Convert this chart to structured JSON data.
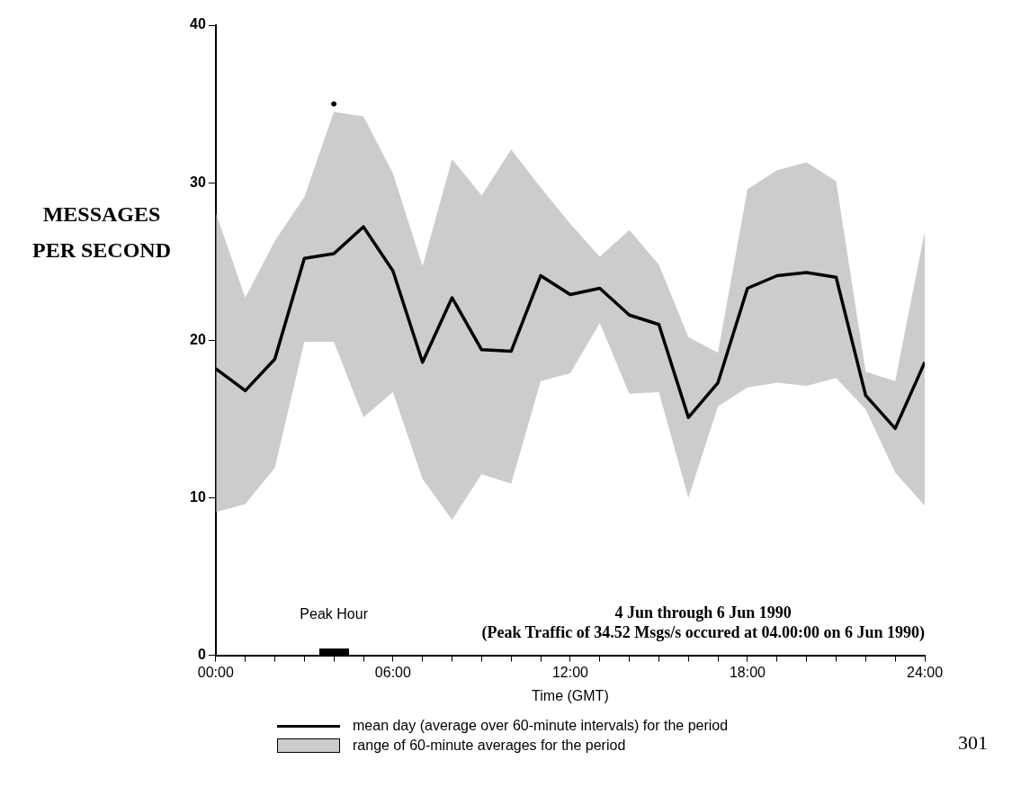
{
  "chart_data": {
    "type": "line",
    "title": "4 Jun through 6 Jun 1990",
    "subtitle": "(Peak Traffic of 34.52 Msgs/s occured at 04.00:00 on 6 Jun 1990)",
    "xlabel": "Time (GMT)",
    "ylabel": "MESSAGES PER SECOND",
    "x": [
      0,
      1,
      2,
      3,
      4,
      5,
      6,
      7,
      8,
      9,
      10,
      11,
      12,
      13,
      14,
      15,
      16,
      17,
      18,
      19,
      20,
      21,
      22,
      23,
      24
    ],
    "series": [
      {
        "name": "mean day (average over 60-minute intervals) for the period",
        "color": "#000000",
        "values": [
          18.2,
          16.8,
          18.8,
          25.2,
          25.5,
          27.2,
          24.4,
          18.6,
          22.7,
          19.4,
          19.3,
          24.1,
          22.9,
          23.3,
          21.6,
          21.0,
          15.1,
          17.3,
          23.3,
          24.1,
          24.3,
          24.0,
          16.5,
          14.4,
          18.6
        ],
        "lower": [
          9.1,
          9.6,
          11.9,
          19.9,
          19.9,
          15.1,
          16.7,
          11.2,
          8.6,
          11.5,
          10.9,
          17.4,
          17.9,
          21.1,
          16.6,
          16.7,
          10.0,
          15.8,
          17.0,
          17.3,
          17.1,
          17.6,
          15.6,
          11.6,
          9.5
        ],
        "upper": [
          28.1,
          22.7,
          26.3,
          29.1,
          34.5,
          34.2,
          30.6,
          24.7,
          31.5,
          29.2,
          32.1,
          29.7,
          27.4,
          25.3,
          27.0,
          24.8,
          20.2,
          19.2,
          29.6,
          30.8,
          31.3,
          30.1,
          18.0,
          17.4,
          26.9
        ]
      },
      {
        "type": "scatter",
        "color": "#000000",
        "x": [
          4
        ],
        "values": [
          35
        ],
        "marker": "circle"
      }
    ],
    "xlim": [
      0,
      24
    ],
    "xticks": [
      {
        "value": 0,
        "label": "00:00"
      },
      {
        "value": 1,
        "label": null
      },
      {
        "value": 2,
        "label": null
      },
      {
        "value": 3,
        "label": null
      },
      {
        "value": 4,
        "label": null
      },
      {
        "value": 5,
        "label": null
      },
      {
        "value": 6,
        "label": "06:00"
      },
      {
        "value": 7,
        "label": null
      },
      {
        "value": 8,
        "label": null
      },
      {
        "value": 9,
        "label": null
      },
      {
        "value": 10,
        "label": null
      },
      {
        "value": 11,
        "label": null
      },
      {
        "value": 12,
        "label": "12:00"
      },
      {
        "value": 13,
        "label": null
      },
      {
        "value": 14,
        "label": null
      },
      {
        "value": 15,
        "label": null
      },
      {
        "value": 16,
        "label": null
      },
      {
        "value": 17,
        "label": null
      },
      {
        "value": 18,
        "label": "18:00"
      },
      {
        "value": 19,
        "label": null
      },
      {
        "value": 20,
        "label": null
      },
      {
        "value": 21,
        "label": null
      },
      {
        "value": 22,
        "label": null
      },
      {
        "value": 23,
        "label": null
      },
      {
        "value": 24,
        "label": "24:00"
      }
    ],
    "ylim": [
      0,
      40
    ],
    "yticks": [
      0,
      10,
      20,
      30,
      40
    ],
    "annotations": [
      "Peak Hour",
      "range of 60-minute averages for the period",
      "301"
    ],
    "grid": false,
    "legend": "bottom"
  }
}
